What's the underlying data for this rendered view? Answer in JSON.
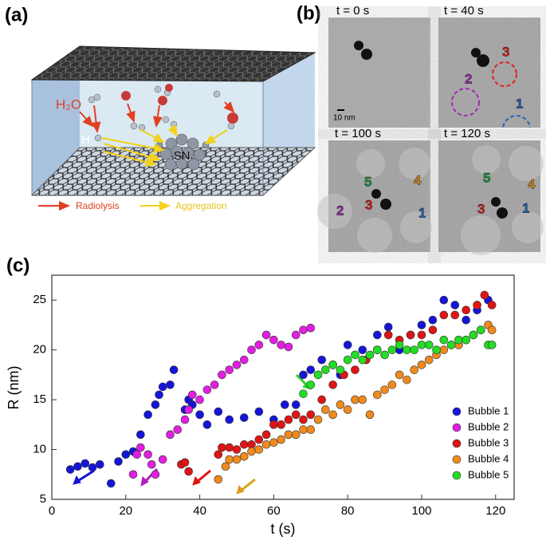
{
  "panel_labels": [
    "(a)",
    "(b)",
    "(c)"
  ],
  "schematic": {
    "h2o": "H₂O",
    "h": "H",
    "sn": "SN",
    "legend": [
      "Radiolysis",
      "Aggregation"
    ]
  },
  "micrographs": [
    {
      "time": "t = 0 s",
      "scale_bar": "10 nm"
    },
    {
      "time": "t = 40 s",
      "bubbles": [
        "3",
        "2",
        "1"
      ]
    },
    {
      "time": "t = 100 s",
      "bubbles": [
        "5",
        "4",
        "2",
        "3",
        "1"
      ]
    },
    {
      "time": "t = 120 s",
      "bubbles": [
        "5",
        "4",
        "3",
        "1"
      ]
    }
  ],
  "chart_data": {
    "type": "scatter",
    "xlabel": "t (s)",
    "ylabel": "R (nm)",
    "xlim": [
      0,
      125
    ],
    "ylim": [
      5,
      27.5
    ],
    "xticks": [
      0,
      20,
      40,
      60,
      80,
      100,
      120
    ],
    "yticks": [
      5,
      10,
      15,
      20,
      25
    ],
    "legend": "lower right",
    "series": [
      {
        "name": "Bubble 1",
        "color": "#1515d8",
        "x": [
          5,
          7,
          9,
          11,
          13,
          16,
          18,
          20,
          22,
          24,
          26,
          28,
          29,
          30,
          32,
          33,
          36,
          37,
          38,
          40,
          42,
          45,
          48,
          52,
          56,
          60,
          63,
          66,
          68,
          70,
          73,
          76,
          78,
          80,
          84,
          88,
          91,
          94,
          97,
          100,
          103,
          106,
          109,
          112,
          115,
          118
        ],
        "values": [
          8.0,
          8.3,
          8.6,
          8.2,
          8.5,
          6.6,
          8.8,
          9.5,
          9.8,
          11.5,
          13.5,
          14.5,
          15.5,
          16.3,
          16.5,
          18.0,
          14,
          15,
          14.5,
          13.5,
          12.5,
          13.8,
          13.0,
          13.2,
          13.8,
          13.0,
          14.5,
          14.5,
          17.5,
          18.0,
          19.0,
          18.5,
          17.5,
          20.5,
          20.0,
          21.5,
          22.3,
          20.0,
          21.5,
          22.5,
          23.0,
          25.0,
          24.5,
          23.0,
          24.0,
          25.0
        ]
      },
      {
        "name": "Bubble 2",
        "color": "#e21ee2",
        "x": [
          22,
          23,
          24,
          26,
          27,
          28,
          30,
          32,
          34,
          36,
          37,
          38,
          40,
          42,
          44,
          46,
          48,
          50,
          52,
          54,
          56,
          58,
          60,
          62,
          64,
          66,
          68,
          70
        ],
        "values": [
          7.5,
          9.5,
          10.2,
          9.5,
          8.5,
          7.5,
          9.0,
          11.5,
          12.0,
          13.0,
          14.0,
          15.5,
          15.0,
          16.0,
          16.5,
          17.5,
          18.0,
          18.5,
          19.0,
          20.0,
          20.5,
          21.5,
          21.0,
          20.5,
          20.3,
          21.5,
          22.0,
          22.2
        ]
      },
      {
        "name": "Bubble 3",
        "color": "#e01414",
        "x": [
          35,
          36,
          37,
          45,
          46,
          48,
          50,
          52,
          54,
          56,
          58,
          60,
          62,
          64,
          66,
          68,
          70,
          73,
          76,
          79,
          82,
          85,
          88,
          91,
          94,
          97,
          100,
          103,
          106,
          109,
          112,
          115,
          117,
          119
        ],
        "values": [
          8.5,
          8.7,
          7.8,
          9.5,
          10.2,
          10.2,
          10.0,
          10.5,
          10.5,
          11.0,
          11.5,
          12.5,
          12.5,
          13.0,
          13.5,
          13.0,
          13.5,
          15.0,
          16.5,
          17.5,
          18.0,
          19.0,
          20.0,
          21.5,
          21.0,
          21.5,
          21.5,
          22.0,
          23.5,
          23.5,
          24.0,
          24.5,
          25.5,
          24.5
        ]
      },
      {
        "name": "Bubble 4",
        "color": "#f08a1c",
        "x": [
          45,
          47,
          48,
          50,
          52,
          54,
          56,
          58,
          60,
          62,
          64,
          66,
          68,
          70,
          72,
          74,
          76,
          78,
          80,
          82,
          84,
          86,
          88,
          90,
          92,
          94,
          96,
          98,
          100,
          102,
          104,
          106,
          108,
          110,
          112,
          114,
          116,
          118,
          119
        ],
        "values": [
          7.0,
          8.3,
          9.0,
          9.0,
          9.3,
          9.8,
          10.0,
          10.5,
          10.7,
          11.0,
          11.5,
          11.5,
          12.0,
          12.0,
          13.0,
          14.0,
          13.5,
          14.5,
          14.0,
          15.0,
          15.0,
          13.5,
          15.5,
          16.0,
          16.5,
          17.5,
          17.0,
          18.0,
          18.5,
          19.0,
          19.5,
          20.0,
          20.5,
          20.5,
          21.0,
          21.5,
          22.0,
          22.5,
          22.0
        ]
      },
      {
        "name": "Bubble 5",
        "color": "#22dd22",
        "x": [
          68,
          70,
          72,
          74,
          76,
          78,
          80,
          82,
          84,
          86,
          88,
          90,
          92,
          94,
          96,
          98,
          100,
          102,
          104,
          106,
          108,
          110,
          112,
          114,
          116,
          118,
          119
        ],
        "values": [
          15.6,
          16.5,
          17.5,
          18.0,
          18.5,
          18.0,
          19.0,
          19.5,
          19.0,
          19.5,
          20.0,
          19.5,
          20.0,
          20.5,
          20.0,
          20.0,
          20.5,
          20.5,
          20.0,
          21.0,
          20.5,
          21.0,
          21.0,
          21.5,
          22.0,
          20.5,
          20.5
        ]
      }
    ]
  }
}
